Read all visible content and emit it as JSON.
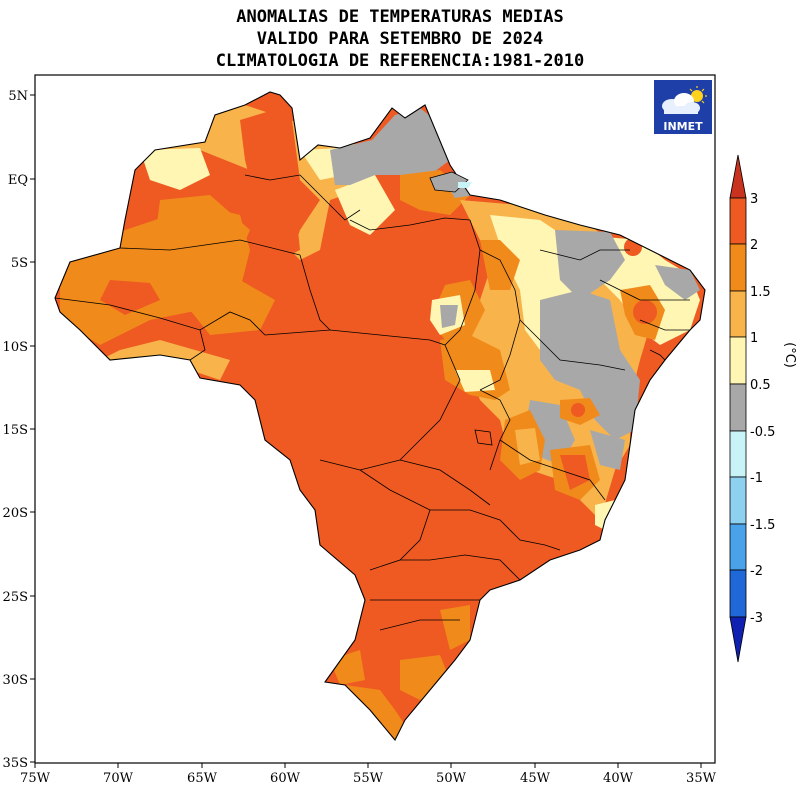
{
  "title": {
    "line1": "ANOMALIAS DE TEMPERATURAS MEDIAS",
    "line2": "VALIDO PARA SETEMBRO DE 2024",
    "line3": "CLIMATOLOGIA DE REFERENCIA:1981-2010"
  },
  "logo": {
    "text": "INMET",
    "icon": "cloud-sun-icon"
  },
  "axes": {
    "y_ticks": [
      "5N",
      "EQ",
      "5S",
      "10S",
      "15S",
      "20S",
      "25S",
      "30S",
      "35S"
    ],
    "x_ticks": [
      "75W",
      "70W",
      "65W",
      "60W",
      "55W",
      "50W",
      "45W",
      "40W",
      "35W"
    ]
  },
  "colorbar": {
    "unit": "(°C)",
    "labels": [
      "3",
      "2",
      "1.5",
      "1",
      "0.5",
      "-0.5",
      "-1",
      "-1.5",
      "-2",
      "-3"
    ],
    "colors": {
      "gt3": "#c8321e",
      "2_3": "#ee5a22",
      "1.5_2": "#f08a1a",
      "1_1.5": "#f8b44a",
      "0.5_1": "#fff6b4",
      "-0.5_0.5": "#a8a8a8",
      "-1_-0.5": "#c8f4f8",
      "-1.5_-1": "#8ed0f0",
      "-2_-1.5": "#4aa2e8",
      "-3_-2": "#1e68d8",
      "lt-3": "#1020b0"
    }
  }
}
